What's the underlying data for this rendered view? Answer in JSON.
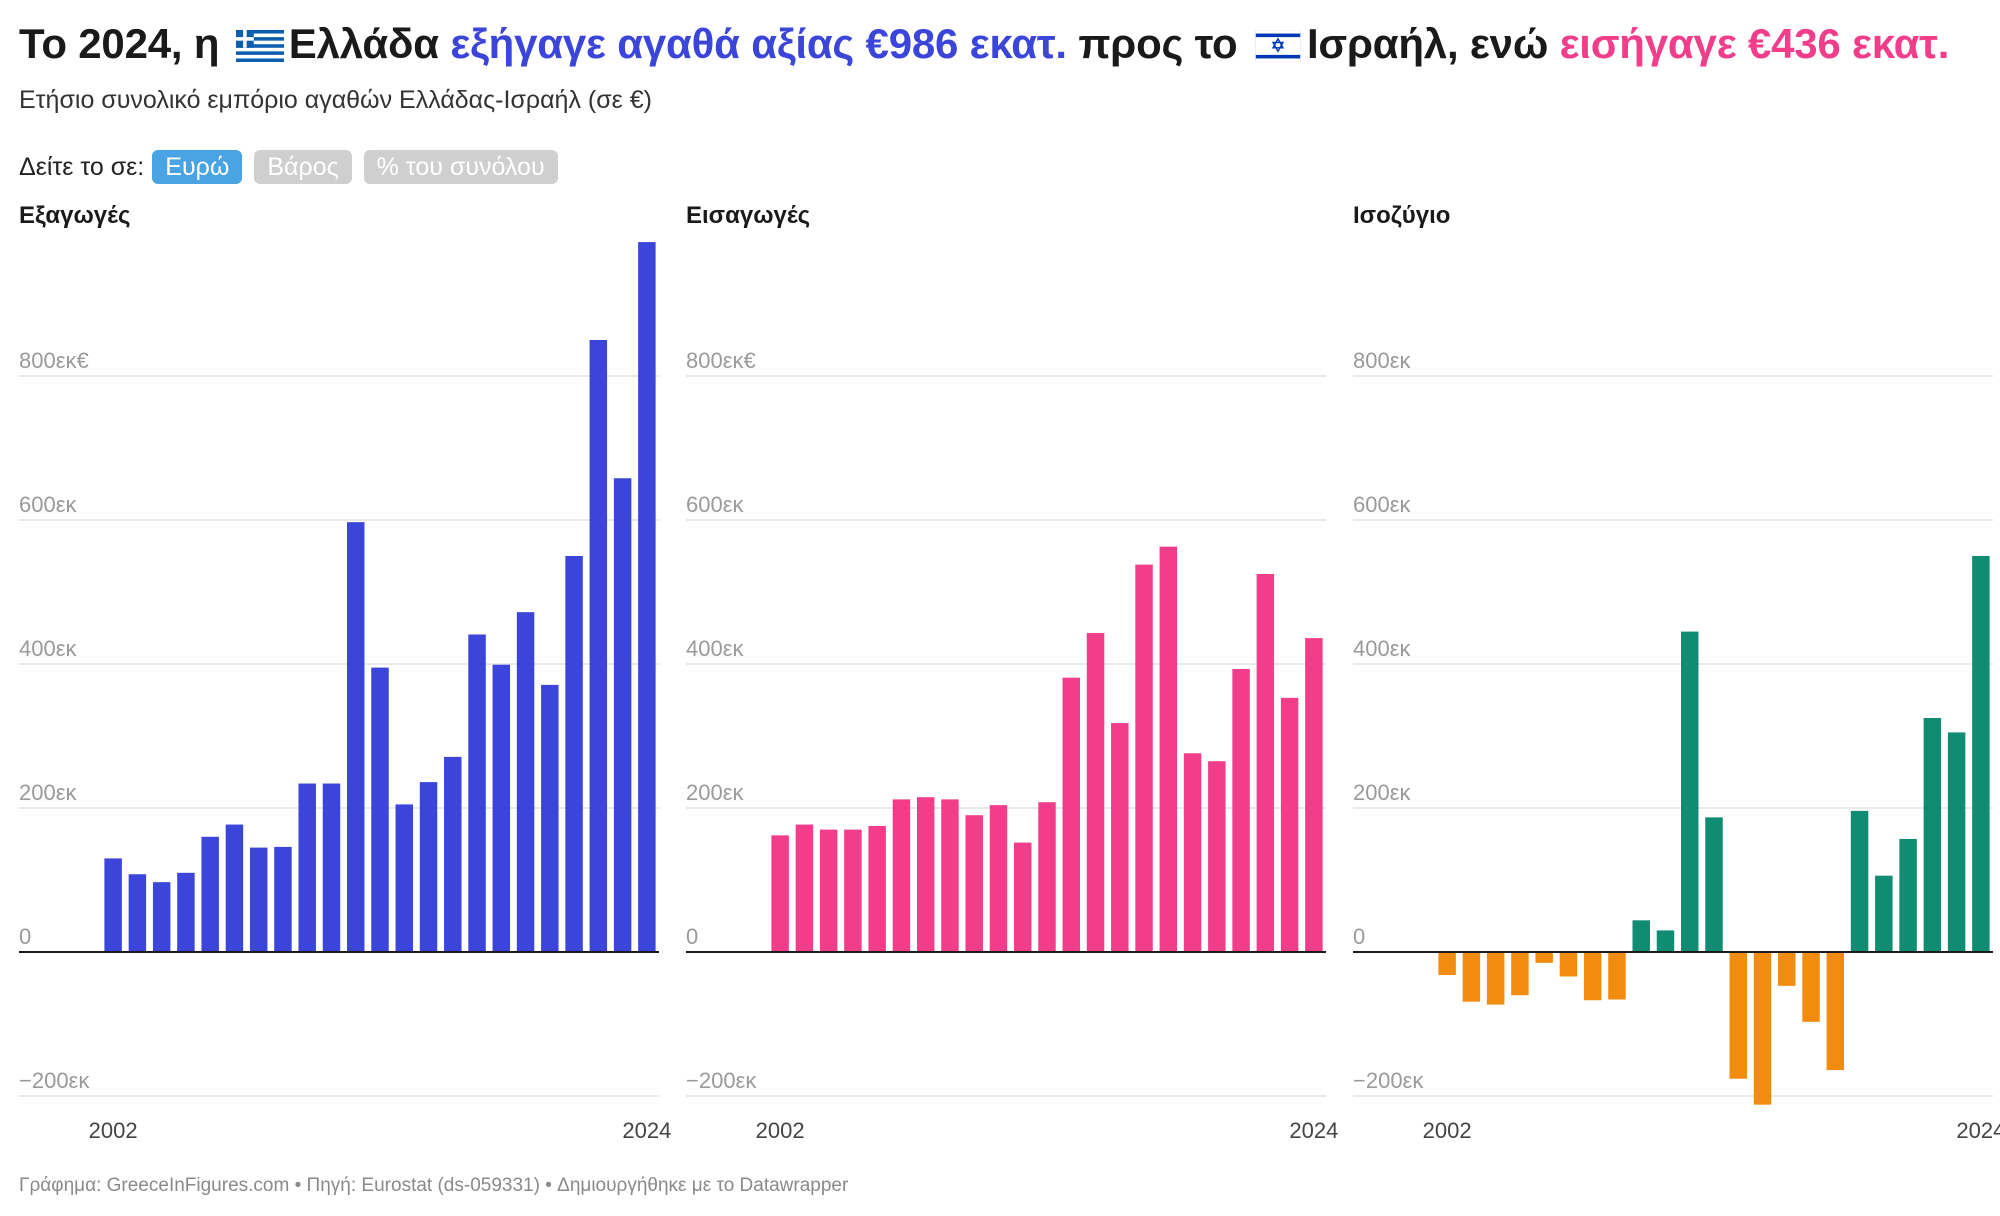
{
  "header": {
    "title_prefix": "Το 2024, η",
    "country_from": "Ελλάδα",
    "exports_phrase": "εξήγαγε αγαθά αξίας €986 εκατ.",
    "middle": "προς το",
    "country_to": "Ισραήλ",
    "conj": ", ενώ",
    "imports_phrase": "εισήγαγε €436 εκατ."
  },
  "subtitle": "Ετήσιο συνολικό εμπόριο αγαθών Ελλάδας-Ισραήλ (σε €)",
  "toggle": {
    "label": "Δείτε το σε:",
    "options": [
      "Ευρώ",
      "Βάρος",
      "% του συνόλου"
    ],
    "active": "Ευρώ"
  },
  "colors": {
    "exports": "#3b45d9",
    "imports": "#f23d8b",
    "balance_positive": "#0f8c72",
    "balance_negative": "#f28c0f",
    "grid": "#e2e2e2",
    "axis_label": "#9a9a9a",
    "zero_line": "#1a1a1a"
  },
  "chart_data": [
    {
      "type": "bar",
      "title": "Εξαγωγές",
      "x": [
        2002,
        2003,
        2004,
        2005,
        2006,
        2007,
        2008,
        2009,
        2010,
        2011,
        2012,
        2013,
        2014,
        2015,
        2016,
        2017,
        2018,
        2019,
        2020,
        2021,
        2022,
        2023,
        2024
      ],
      "values": [
        130,
        108,
        97,
        110,
        160,
        177,
        145,
        146,
        234,
        234,
        597,
        395,
        205,
        236,
        271,
        441,
        399,
        472,
        371,
        550,
        850,
        658,
        986
      ],
      "ylim": [
        -200,
        986
      ],
      "yticks": [
        -200,
        0,
        200,
        400,
        600,
        800
      ],
      "ytick_labels": [
        "−200εκ",
        "0",
        "200εκ",
        "400εκ",
        "600εκ",
        "800εκ€"
      ],
      "xtick_labels": [
        "2002",
        "2024"
      ],
      "color_key": "exports"
    },
    {
      "type": "bar",
      "title": "Εισαγωγές",
      "x": [
        2002,
        2003,
        2004,
        2005,
        2006,
        2007,
        2008,
        2009,
        2010,
        2011,
        2012,
        2013,
        2014,
        2015,
        2016,
        2017,
        2018,
        2019,
        2020,
        2021,
        2022,
        2023,
        2024
      ],
      "values": [
        162,
        177,
        170,
        170,
        175,
        212,
        215,
        212,
        190,
        204,
        152,
        208,
        381,
        443,
        318,
        538,
        563,
        276,
        265,
        393,
        525,
        353,
        436
      ],
      "ylim": [
        -200,
        986
      ],
      "yticks": [
        -200,
        0,
        200,
        400,
        600,
        800
      ],
      "ytick_labels": [
        "−200εκ",
        "0",
        "200εκ",
        "400εκ",
        "600εκ",
        "800εκ€"
      ],
      "xtick_labels": [
        "2002",
        "2024"
      ],
      "color_key": "imports"
    },
    {
      "type": "bar",
      "title": "Ισοζύγιο",
      "x": [
        2002,
        2003,
        2004,
        2005,
        2006,
        2007,
        2008,
        2009,
        2010,
        2011,
        2012,
        2013,
        2014,
        2015,
        2016,
        2017,
        2018,
        2019,
        2020,
        2021,
        2022,
        2023,
        2024
      ],
      "values": [
        -32,
        -69,
        -73,
        -60,
        -15,
        -34,
        -67,
        -66,
        44,
        30,
        445,
        187,
        -176,
        -212,
        -47,
        -97,
        -164,
        196,
        106,
        157,
        325,
        305,
        550
      ],
      "ylim": [
        -200,
        986
      ],
      "yticks": [
        -200,
        0,
        200,
        400,
        600,
        800
      ],
      "ytick_labels": [
        "−200εκ",
        "0",
        "200εκ",
        "400εκ",
        "600εκ",
        "800εκ"
      ],
      "xtick_labels": [
        "2002",
        "2024"
      ],
      "color_key": "balance"
    }
  ],
  "footer": "Γράφημα: GreeceInFigures.com • Πηγή: Eurostat (ds-059331) • Δημιουργήθηκε με το Datawrapper"
}
